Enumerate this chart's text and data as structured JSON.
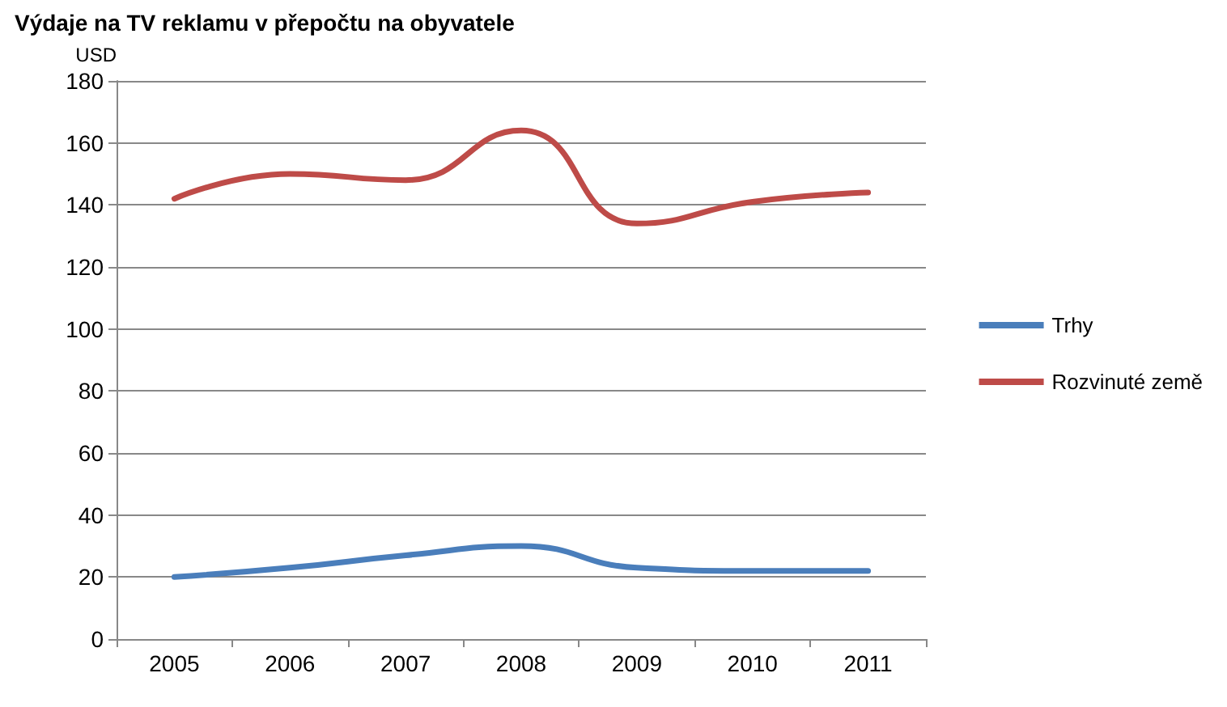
{
  "chart_data": {
    "type": "line",
    "title": "Výdaje na TV reklamu v přepočtu na obyvatele",
    "ylabel": "USD",
    "categories": [
      "2005",
      "2006",
      "2007",
      "2008",
      "2009",
      "2010",
      "2011"
    ],
    "series": [
      {
        "name": "Trhy",
        "color": "#4a7ebb",
        "values": [
          20,
          23,
          27,
          30,
          23,
          22,
          22
        ]
      },
      {
        "name": "Rozvinuté země",
        "color": "#be4b48",
        "values": [
          142,
          150,
          148,
          164,
          134,
          141,
          144
        ]
      }
    ],
    "ylim": [
      0,
      180
    ],
    "yticks": [
      0,
      20,
      40,
      60,
      80,
      100,
      120,
      140,
      160,
      180
    ],
    "grid": "y",
    "legend": "right",
    "marker": "none",
    "line_style": "solid"
  }
}
